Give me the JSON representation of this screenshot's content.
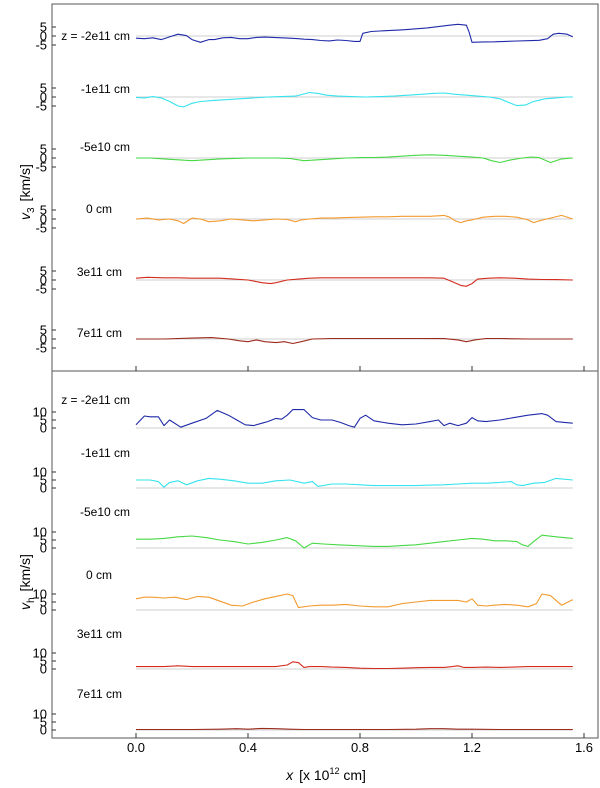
{
  "chart_data": [
    {
      "type": "line",
      "panel": "top",
      "ylabel": "v_3 [km/s]",
      "ylabel_main": "v",
      "ylabel_sub": "3",
      "ylabel_unit": "[km/s]",
      "yticks": [
        "5",
        "0",
        "-5"
      ],
      "ylim": [
        -7,
        8
      ],
      "series": [
        {
          "name": "z = -2e11 cm",
          "color": "#1f2aa8",
          "x": [
            0,
            0.03,
            0.06,
            0.09,
            0.12,
            0.15,
            0.18,
            0.2,
            0.23,
            0.26,
            0.28,
            0.31,
            0.34,
            0.37,
            0.4,
            0.43,
            0.46,
            0.49,
            0.52,
            0.55,
            0.58,
            0.6,
            0.63,
            0.66,
            0.69,
            0.72,
            0.75,
            0.78,
            0.8,
            0.81,
            0.84,
            0.87,
            0.9,
            0.93,
            0.96,
            1.0,
            1.04,
            1.08,
            1.12,
            1.15,
            1.18,
            1.19,
            1.2,
            1.24,
            1.28,
            1.32,
            1.36,
            1.4,
            1.44,
            1.47,
            1.49,
            1.51,
            1.54,
            1.56
          ],
          "y": [
            -1.2,
            -1.5,
            -1.0,
            -2.0,
            -0.5,
            1.0,
            0.2,
            -2.0,
            -3.5,
            -2.0,
            -2.0,
            -1.0,
            -0.8,
            -1.5,
            -1.5,
            -0.8,
            -0.6,
            -0.8,
            -1.0,
            -1.2,
            -1.5,
            -1.8,
            -2.0,
            -2.5,
            -2.7,
            -2.2,
            -2.5,
            -3.0,
            -3.0,
            1.5,
            2.5,
            2.8,
            3.0,
            3.2,
            3.5,
            4.0,
            4.5,
            5.2,
            6.0,
            6.5,
            6.0,
            2.0,
            -3.5,
            -3.3,
            -3.2,
            -3.0,
            -2.8,
            -2.6,
            -2.4,
            -1.5,
            1.0,
            1.5,
            1.0,
            -0.5
          ]
        },
        {
          "name": "-1e11 cm",
          "color": "#35e3ee",
          "x": [
            0,
            0.03,
            0.06,
            0.09,
            0.12,
            0.15,
            0.17,
            0.2,
            0.23,
            0.27,
            0.32,
            0.37,
            0.42,
            0.47,
            0.52,
            0.57,
            0.62,
            0.65,
            0.68,
            0.72,
            0.77,
            0.82,
            0.87,
            0.92,
            0.97,
            1.02,
            1.06,
            1.1,
            1.14,
            1.18,
            1.22,
            1.26,
            1.3,
            1.33,
            1.36,
            1.39,
            1.42,
            1.46,
            1.5,
            1.54,
            1.56
          ],
          "y": [
            -0.2,
            -0.5,
            0.2,
            -0.5,
            -2.5,
            -5.0,
            -5.5,
            -3.5,
            -2.5,
            -2.0,
            -1.5,
            -1.0,
            -0.5,
            0.0,
            0.2,
            0.5,
            2.5,
            2.0,
            1.0,
            0.5,
            0.2,
            0.0,
            0.2,
            0.5,
            1.0,
            1.5,
            2.0,
            2.2,
            1.5,
            1.0,
            0.5,
            0.0,
            -1.0,
            -3.0,
            -4.8,
            -4.5,
            -2.5,
            -1.0,
            -0.5,
            0.0,
            0.0
          ]
        },
        {
          "name": "-5e10 cm",
          "color": "#46d843",
          "x": [
            0,
            0.05,
            0.1,
            0.15,
            0.2,
            0.25,
            0.3,
            0.35,
            0.4,
            0.45,
            0.5,
            0.55,
            0.6,
            0.65,
            0.7,
            0.75,
            0.8,
            0.85,
            0.9,
            0.95,
            1.0,
            1.05,
            1.1,
            1.15,
            1.2,
            1.24,
            1.27,
            1.3,
            1.34,
            1.38,
            1.41,
            1.44,
            1.48,
            1.52,
            1.56
          ],
          "y": [
            0,
            0,
            -0.5,
            -1.0,
            -1.5,
            -1.0,
            -0.5,
            -0.2,
            0.0,
            0.0,
            0.0,
            -0.3,
            -1.5,
            -1.0,
            -0.5,
            0.0,
            0.2,
            0.3,
            0.5,
            1.0,
            1.5,
            1.8,
            1.5,
            1.0,
            0.5,
            0.0,
            -1.5,
            -2.5,
            -1.0,
            0.0,
            0.5,
            0.2,
            -2.5,
            -0.5,
            0
          ]
        },
        {
          "name": "0 cm",
          "color": "#f39a2e",
          "x": [
            0,
            0.04,
            0.08,
            0.12,
            0.15,
            0.17,
            0.2,
            0.23,
            0.26,
            0.3,
            0.34,
            0.38,
            0.42,
            0.46,
            0.5,
            0.54,
            0.57,
            0.59,
            0.62,
            0.66,
            0.7,
            0.75,
            0.8,
            0.85,
            0.9,
            0.95,
            1.0,
            1.05,
            1.1,
            1.12,
            1.14,
            1.16,
            1.18,
            1.2,
            1.24,
            1.28,
            1.32,
            1.36,
            1.4,
            1.42,
            1.44,
            1.48,
            1.52,
            1.56
          ],
          "y": [
            0,
            0.5,
            -0.5,
            0,
            -1.0,
            -2.5,
            0.5,
            0,
            -1.5,
            -1.0,
            0,
            -0.5,
            -1.0,
            -0.5,
            0,
            -0.3,
            -1.5,
            -0.5,
            0,
            0.5,
            0.5,
            0.8,
            1.0,
            1.2,
            1.2,
            1.5,
            1.5,
            1.5,
            2.0,
            1.0,
            -1.0,
            -2.0,
            -1.0,
            -0.5,
            1.0,
            1.5,
            1.5,
            1.0,
            -0.5,
            -2.0,
            -1.0,
            0.5,
            2.0,
            0
          ]
        },
        {
          "name": "3e11 cm",
          "color": "#d42b1e",
          "x": [
            0,
            0.04,
            0.1,
            0.15,
            0.2,
            0.25,
            0.3,
            0.35,
            0.4,
            0.45,
            0.48,
            0.5,
            0.54,
            0.58,
            0.62,
            0.66,
            0.7,
            0.75,
            0.8,
            0.85,
            0.9,
            0.95,
            1.0,
            1.05,
            1.1,
            1.13,
            1.16,
            1.18,
            1.2,
            1.22,
            1.26,
            1.3,
            1.35,
            1.4,
            1.45,
            1.5,
            1.56
          ],
          "y": [
            1,
            1.5,
            1.2,
            1.2,
            1.0,
            1.0,
            1.0,
            0.5,
            0,
            -1.5,
            -2.0,
            -1.5,
            0,
            0.5,
            1.0,
            1.2,
            1.2,
            1.2,
            1.2,
            1.2,
            1.2,
            1.2,
            1.2,
            1.2,
            1.0,
            -1.0,
            -3.0,
            -3.5,
            -2.0,
            0.5,
            1.0,
            1.2,
            1.0,
            0.5,
            0.3,
            0.2,
            0
          ]
        },
        {
          "name": "7e11 cm",
          "color": "#9c2a1c",
          "x": [
            0,
            0.1,
            0.2,
            0.27,
            0.33,
            0.37,
            0.4,
            0.43,
            0.46,
            0.5,
            0.53,
            0.56,
            0.59,
            0.63,
            0.7,
            0.8,
            0.9,
            1.0,
            1.1,
            1.15,
            1.18,
            1.21,
            1.25,
            1.3,
            1.4,
            1.5,
            1.56
          ],
          "y": [
            0,
            0,
            0.5,
            0.8,
            0,
            -1.0,
            -1.5,
            -0.5,
            -1.5,
            -2.0,
            -1.5,
            -2.5,
            -1.5,
            0,
            0.3,
            0.3,
            0.3,
            0.3,
            0.2,
            -0.5,
            -1.5,
            -0.5,
            0.3,
            0.3,
            0,
            0,
            0
          ]
        }
      ]
    },
    {
      "type": "line",
      "panel": "bottom",
      "ylabel": "v_h [km/s]",
      "ylabel_main": "v",
      "ylabel_sub": "h",
      "ylabel_unit": "[km/s]",
      "yticks": [
        "10",
        "5",
        "0"
      ],
      "ylim": [
        -1,
        13
      ],
      "series": [
        {
          "name": "z = -2e11 cm",
          "color": "#1f2aa8",
          "x": [
            0,
            0.03,
            0.05,
            0.08,
            0.1,
            0.12,
            0.16,
            0.2,
            0.25,
            0.29,
            0.33,
            0.36,
            0.39,
            0.42,
            0.45,
            0.47,
            0.5,
            0.52,
            0.54,
            0.56,
            0.6,
            0.63,
            0.66,
            0.7,
            0.73,
            0.76,
            0.78,
            0.8,
            0.82,
            0.85,
            0.9,
            0.95,
            1.0,
            1.05,
            1.08,
            1.1,
            1.12,
            1.15,
            1.18,
            1.2,
            1.22,
            1.25,
            1.3,
            1.35,
            1.4,
            1.45,
            1.47,
            1.5,
            1.53,
            1.56
          ],
          "y": [
            2,
            7.5,
            7.0,
            7.0,
            1.5,
            5.0,
            0.5,
            3.0,
            6.0,
            11.0,
            8.0,
            5.0,
            2.0,
            1.5,
            3.0,
            4.0,
            6.0,
            5.5,
            8.0,
            11.5,
            11.5,
            6.5,
            5.0,
            5.0,
            3.5,
            1.5,
            0.5,
            6.0,
            8.0,
            4.5,
            3.0,
            2.0,
            2.5,
            4.0,
            5.0,
            1.5,
            3.0,
            1.5,
            3.0,
            6.5,
            4.5,
            4.0,
            5.0,
            6.5,
            8.0,
            9.0,
            8.0,
            4.0,
            3.5,
            3.0
          ]
        },
        {
          "name": "-1e11 cm",
          "color": "#35e3ee",
          "x": [
            0,
            0.05,
            0.08,
            0.1,
            0.12,
            0.15,
            0.18,
            0.22,
            0.26,
            0.3,
            0.35,
            0.4,
            0.45,
            0.5,
            0.55,
            0.6,
            0.63,
            0.65,
            0.7,
            0.75,
            0.8,
            0.85,
            0.9,
            0.95,
            1.0,
            1.05,
            1.1,
            1.15,
            1.2,
            1.25,
            1.3,
            1.34,
            1.36,
            1.38,
            1.42,
            1.46,
            1.5,
            1.56
          ],
          "y": [
            5.0,
            5.0,
            4.0,
            0.5,
            3.5,
            4.5,
            2.0,
            4.5,
            6.0,
            5.5,
            4.5,
            3.0,
            3.0,
            4.5,
            5.0,
            3.0,
            4.0,
            1.0,
            2.5,
            2.5,
            2.0,
            1.5,
            1.5,
            1.5,
            1.5,
            1.8,
            2.0,
            2.5,
            3.0,
            3.0,
            3.5,
            4.0,
            2.0,
            1.5,
            3.0,
            3.5,
            6.0,
            5.0
          ]
        },
        {
          "name": "-5e10 cm",
          "color": "#46d843",
          "x": [
            0,
            0.05,
            0.1,
            0.15,
            0.2,
            0.25,
            0.3,
            0.35,
            0.4,
            0.45,
            0.5,
            0.54,
            0.57,
            0.6,
            0.63,
            0.67,
            0.72,
            0.78,
            0.85,
            0.9,
            0.95,
            1.0,
            1.05,
            1.1,
            1.15,
            1.2,
            1.24,
            1.28,
            1.32,
            1.36,
            1.38,
            1.4,
            1.42,
            1.45,
            1.5,
            1.56
          ],
          "y": [
            5.5,
            5.5,
            6.0,
            7.0,
            7.5,
            6.5,
            5.0,
            4.0,
            2.5,
            3.5,
            5.0,
            6.5,
            4.5,
            0,
            3.0,
            2.5,
            2.0,
            1.5,
            1.0,
            1.0,
            1.5,
            2.0,
            3.0,
            4.0,
            5.0,
            6.0,
            5.5,
            4.5,
            4.5,
            4.0,
            2.0,
            1.0,
            4.0,
            8.0,
            7.0,
            6.0
          ]
        },
        {
          "name": "0 cm",
          "color": "#f39a2e",
          "x": [
            0,
            0.03,
            0.06,
            0.1,
            0.14,
            0.18,
            0.22,
            0.26,
            0.3,
            0.34,
            0.38,
            0.42,
            0.46,
            0.5,
            0.54,
            0.56,
            0.58,
            0.62,
            0.66,
            0.7,
            0.75,
            0.8,
            0.85,
            0.9,
            0.95,
            1.0,
            1.05,
            1.1,
            1.15,
            1.18,
            1.2,
            1.22,
            1.25,
            1.28,
            1.32,
            1.36,
            1.4,
            1.43,
            1.45,
            1.48,
            1.52,
            1.56
          ],
          "y": [
            7.0,
            8.0,
            8.0,
            7.5,
            8.0,
            6.5,
            8.5,
            8.0,
            5.5,
            3.0,
            2.5,
            5.0,
            7.0,
            8.5,
            10.0,
            9.0,
            1.5,
            2.5,
            3.0,
            3.0,
            3.5,
            2.5,
            2.0,
            2.0,
            4.0,
            5.0,
            6.0,
            6.0,
            6.0,
            5.0,
            7.0,
            3.0,
            2.5,
            3.0,
            3.5,
            3.0,
            2.0,
            4.0,
            10.0,
            9.0,
            3.0,
            6.5
          ]
        },
        {
          "name": "3e11 cm",
          "color": "#d42b1e",
          "x": [
            0,
            0.05,
            0.1,
            0.15,
            0.2,
            0.25,
            0.3,
            0.35,
            0.4,
            0.45,
            0.5,
            0.54,
            0.56,
            0.58,
            0.6,
            0.62,
            0.66,
            0.7,
            0.75,
            0.8,
            0.85,
            0.9,
            0.95,
            1.0,
            1.05,
            1.1,
            1.13,
            1.15,
            1.17,
            1.2,
            1.25,
            1.3,
            1.35,
            1.4,
            1.45,
            1.5,
            1.56
          ],
          "y": [
            1.5,
            1.5,
            1.5,
            2.0,
            1.5,
            1.5,
            1.5,
            1.5,
            1.5,
            1.5,
            1.5,
            2.5,
            4.5,
            4.0,
            1.0,
            1.5,
            1.5,
            1.2,
            1.0,
            0.5,
            0.3,
            0.3,
            0.5,
            0.8,
            1.0,
            1.0,
            1.5,
            2.0,
            1.0,
            1.0,
            1.2,
            1.0,
            1.2,
            1.5,
            1.5,
            1.5,
            1.5
          ]
        },
        {
          "name": "7e11 cm",
          "color": "#9c2a1c",
          "x": [
            0,
            0.1,
            0.2,
            0.3,
            0.36,
            0.4,
            0.45,
            0.5,
            0.55,
            0.6,
            0.7,
            0.8,
            0.9,
            1.0,
            1.05,
            1.1,
            1.15,
            1.2,
            1.3,
            1.4,
            1.5,
            1.56
          ],
          "y": [
            0.3,
            0.3,
            0.3,
            0.5,
            0.8,
            0.5,
            1.0,
            0.8,
            0.5,
            0.3,
            0.3,
            0.3,
            0.3,
            0.5,
            0.8,
            0.8,
            0.5,
            0.5,
            0.3,
            0.3,
            0.3,
            0.3
          ]
        }
      ]
    }
  ],
  "xaxis": {
    "label_main": "x",
    "label_unit": "[x 10",
    "label_exp": "12",
    "label_tail": " cm]",
    "xlim": [
      -0.3,
      1.65
    ],
    "ticks": [
      "0.0",
      "0.4",
      "0.8",
      "1.2",
      "1.6"
    ]
  }
}
